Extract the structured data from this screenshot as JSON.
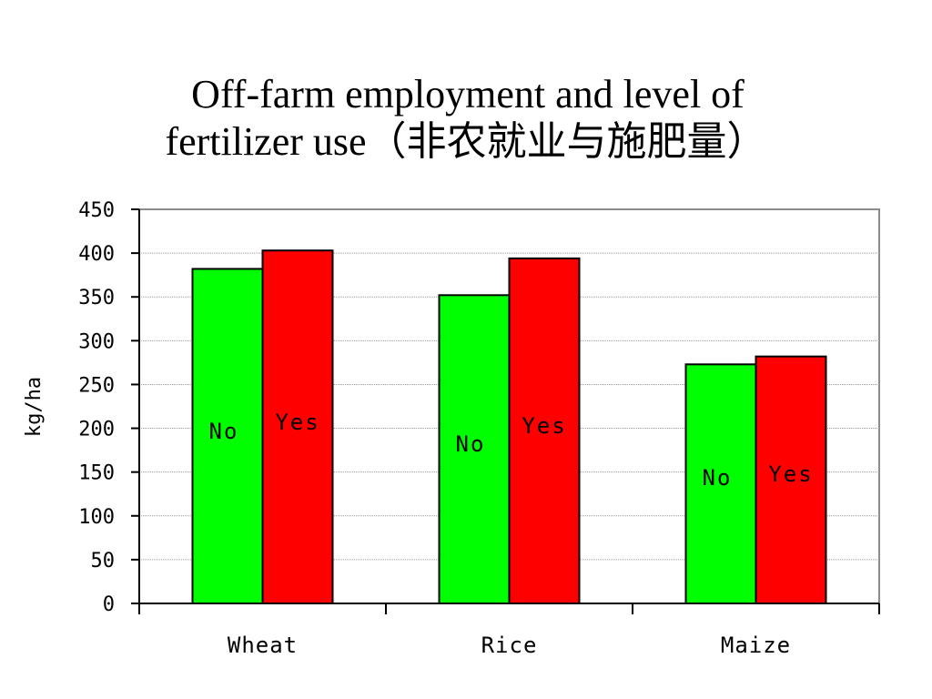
{
  "chart_data": {
    "type": "bar",
    "title": [
      "Off-farm employment and level of",
      "fertilizer use（非农就业与施肥量）"
    ],
    "ylabel": "kg/ha",
    "xlabel": "",
    "categories": [
      "Wheat",
      "Rice",
      "Maize"
    ],
    "series": [
      {
        "name": "No",
        "color": "#00ff00",
        "values": [
          382,
          352,
          273
        ]
      },
      {
        "name": "Yes",
        "color": "#ff0000",
        "values": [
          403,
          394,
          282
        ]
      }
    ],
    "ylim": [
      0,
      450
    ],
    "yticks": [
      0,
      50,
      100,
      150,
      200,
      250,
      300,
      350,
      400,
      450
    ],
    "grid": true,
    "legend": "none"
  }
}
